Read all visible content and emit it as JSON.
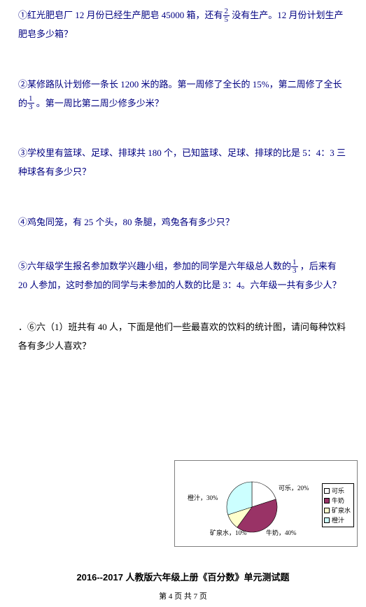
{
  "q1": {
    "pre": "①红光肥皂厂 12 月份已经生产肥皂 45000 箱，还有",
    "frac_n": "2",
    "frac_d": "5",
    "post": " 没有生产。12 月份计划生产肥皂多少箱？"
  },
  "q2": {
    "pre": "②某修路队计划修一条长 1200 米的路。第一周修了全长的 15%，第二周修了全长的",
    "frac_n": "1",
    "frac_d": "3",
    "post": " 。第一周比第二周少修多少米？"
  },
  "q3": "③学校里有篮球、足球、排球共 180 个，已知篮球、足球、排球的比是 5：4：3 三种球各有多少只？",
  "q4": "④鸡兔同笼，有 25 个头，80 条腿，鸡兔各有多少只？",
  "q5": {
    "pre": "⑤六年级学生报名参加数学兴趣小组，参加的同学是六年级总人数的",
    "frac_n": "1",
    "frac_d": "3",
    "post": " ，后来有 20 人参加，这时参加的同学与未参加的人数的比是 3：4。六年级一共有多少人？"
  },
  "q6": "．⑥六（1）班共有 40 人，下面是他们一些最喜欢的饮料的统计图，请问每种饮料各有多少人喜欢？",
  "chart": {
    "labels": {
      "cola": "可乐，20%",
      "milk": "牛奶，40%",
      "water": "矿泉水，10%",
      "juice": "橙汁，30%"
    },
    "legend": {
      "cola": "可乐",
      "milk": "牛奶",
      "water": "矿泉水",
      "juice": "橙汁"
    },
    "colors": {
      "cola": "#ffffff",
      "milk": "#993366",
      "water": "#ffffcc",
      "juice": "#ccffff"
    },
    "slices": {
      "cola": 20,
      "milk": 40,
      "water": 10,
      "juice": 30
    }
  },
  "title": "2016--2017 人教版六年级上册《百分数》单元测试题",
  "footer": "第 4 页 共 7 页"
}
